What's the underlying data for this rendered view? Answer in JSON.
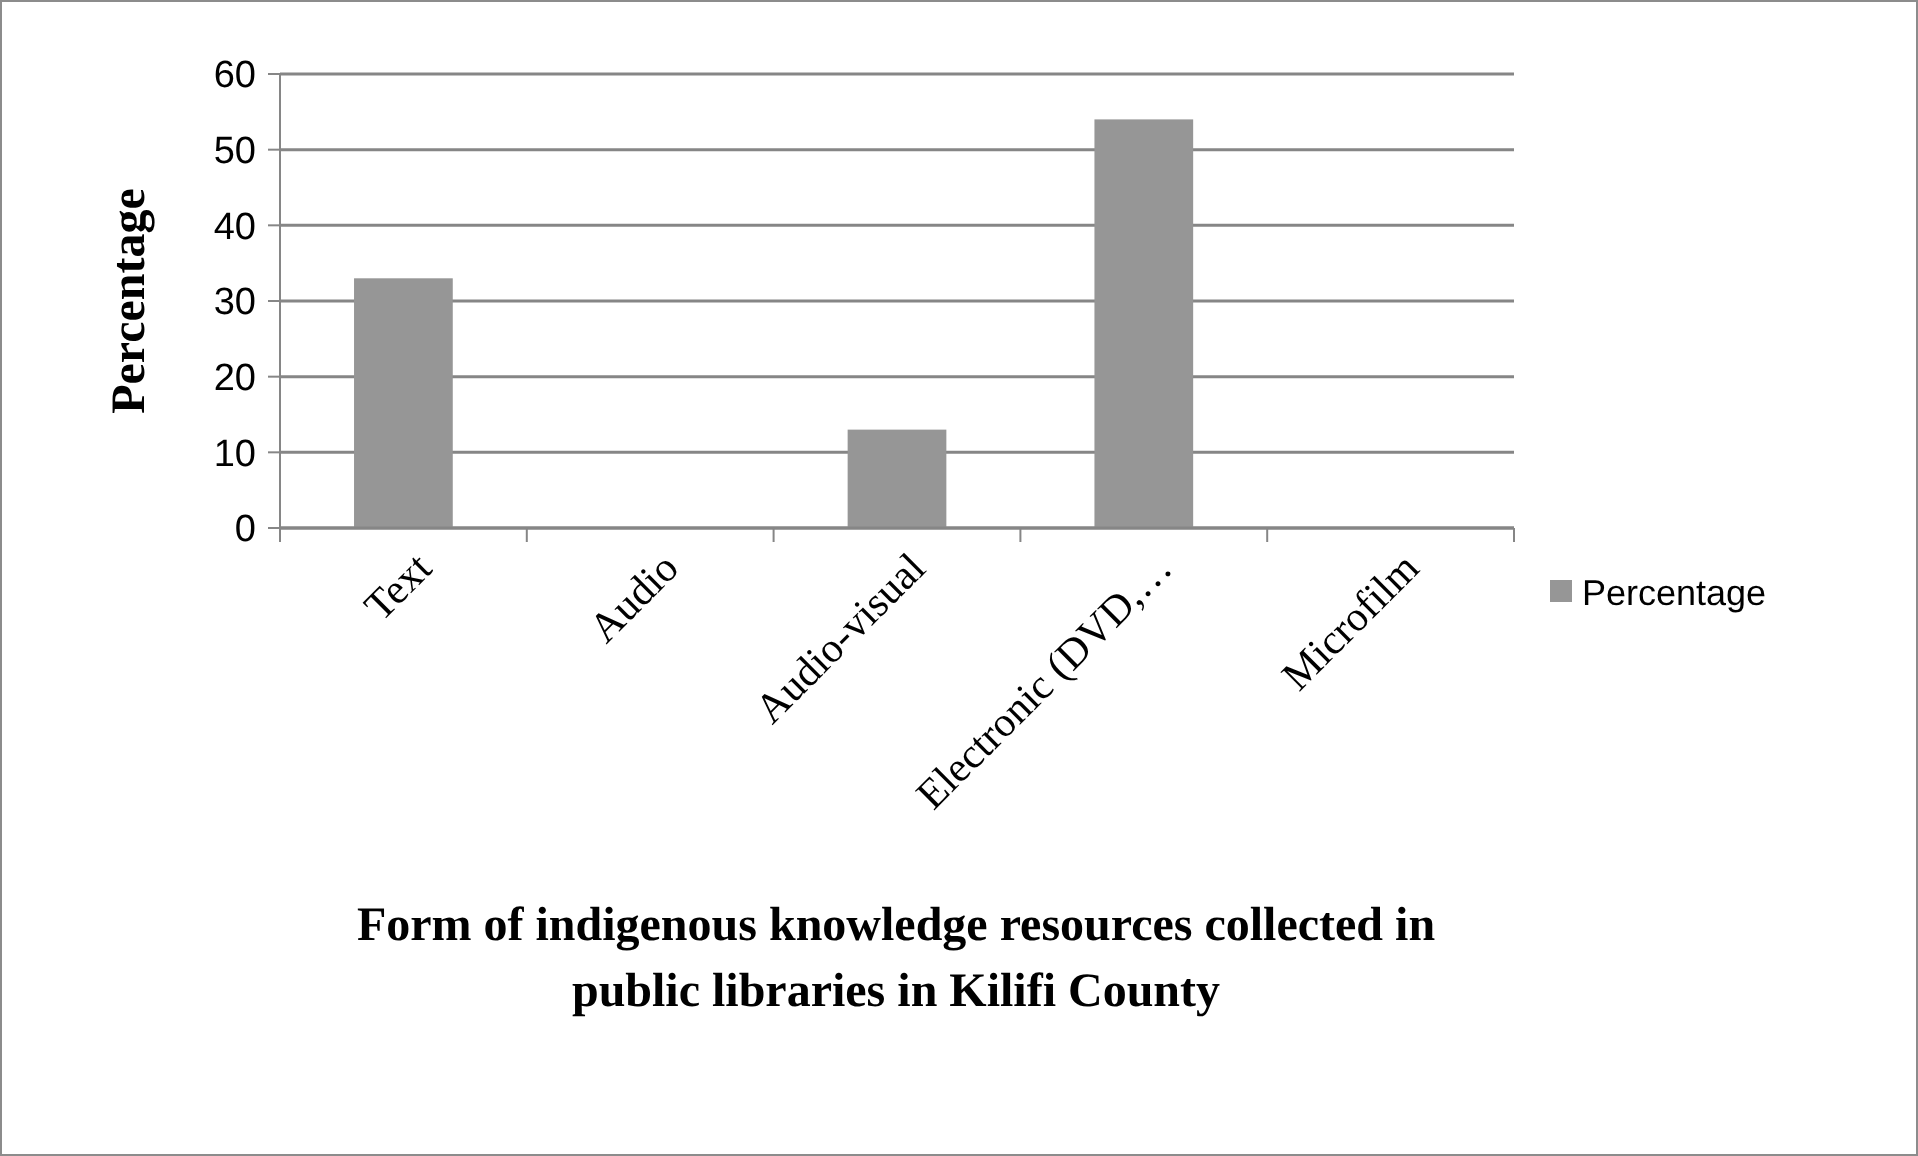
{
  "chart_data": {
    "type": "bar",
    "xlabel": "Form of indigenous knowledge resources collected in public libraries in Kilifi County",
    "ylabel": "Percentage",
    "categories": [
      "Text",
      "Audio",
      "Audio-visual",
      "Electronic (DVD,…",
      "Microfilm"
    ],
    "series": [
      {
        "name": "Percentage",
        "color": "#969696",
        "values": [
          33,
          0,
          13,
          54,
          0
        ]
      }
    ],
    "ylim": [
      0,
      60
    ],
    "yticks": [
      0,
      10,
      20,
      30,
      40,
      50,
      60
    ],
    "grid": "y",
    "legend": "right"
  }
}
